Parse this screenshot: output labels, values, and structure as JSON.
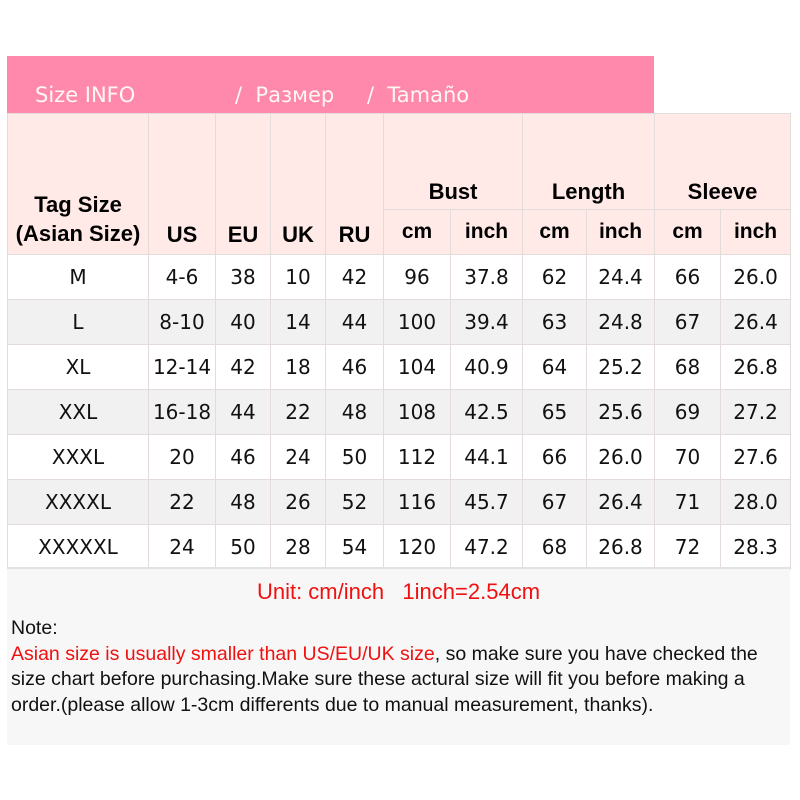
{
  "banner": {
    "en": "Size INFO",
    "ru": "/  Размер",
    "es": "/  Tamaño"
  },
  "header": {
    "tag_size": "Tag Size (Asian Size)",
    "us": "US",
    "eu": "EU",
    "uk": "UK",
    "ru": "RU",
    "bust": "Bust",
    "length": "Length",
    "sleeve": "Sleeve",
    "cm": "cm",
    "inch": "inch"
  },
  "rows": [
    [
      "M",
      "4-6",
      "38",
      "10",
      "42",
      "96",
      "37.8",
      "62",
      "24.4",
      "66",
      "26.0"
    ],
    [
      "L",
      "8-10",
      "40",
      "14",
      "44",
      "100",
      "39.4",
      "63",
      "24.8",
      "67",
      "26.4"
    ],
    [
      "XL",
      "12-14",
      "42",
      "18",
      "46",
      "104",
      "40.9",
      "64",
      "25.2",
      "68",
      "26.8"
    ],
    [
      "XXL",
      "16-18",
      "44",
      "22",
      "48",
      "108",
      "42.5",
      "65",
      "25.6",
      "69",
      "27.2"
    ],
    [
      "XXXL",
      "20",
      "46",
      "24",
      "50",
      "112",
      "44.1",
      "66",
      "26.0",
      "70",
      "27.6"
    ],
    [
      "XXXXL",
      "22",
      "48",
      "26",
      "52",
      "116",
      "45.7",
      "67",
      "26.4",
      "71",
      "28.0"
    ],
    [
      "XXXXXL",
      "24",
      "50",
      "28",
      "54",
      "120",
      "47.2",
      "68",
      "26.8",
      "72",
      "28.3"
    ]
  ],
  "unit": "Unit: cm/inch   1inch=2.54cm",
  "note": {
    "title": "Note:",
    "highlight": "Asian size is usually smaller than US/EU/UK size",
    "body": ", so make sure you have checked the size chart before purchasing.Make sure these actural size will fit you before making a order.(please allow 1-3cm differents due to manual measurement, thanks)."
  },
  "colors": {
    "banner": "#ff88ad",
    "header_bg": "#ffeae7",
    "alt_row": "#f1f1f1",
    "warning": "#f01010"
  }
}
